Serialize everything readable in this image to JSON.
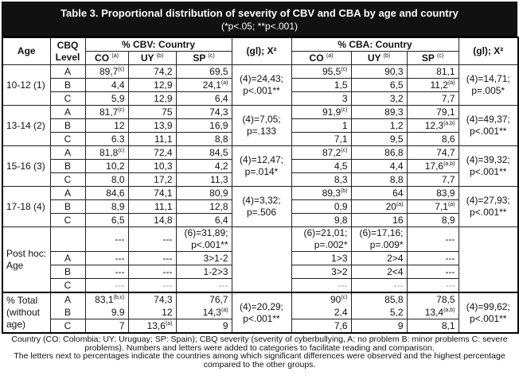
{
  "title": "Table 3. Proportional distribution of severity of CBV and CBA by age and country",
  "subtitle": "(*p<.05; **p<.001)",
  "headers": {
    "age": "Age",
    "level": "CBQ Level",
    "cbv_group": "% CBV: Country",
    "cba_group": "% CBA: Country",
    "chi": "(gl); X²",
    "countries": [
      {
        "v": "CO",
        "s": "(a)"
      },
      {
        "v": "UY",
        "s": "(b)"
      },
      {
        "v": "SP",
        "s": "(c)"
      }
    ]
  },
  "groups": [
    {
      "label": "10-12 (1)",
      "cbv_chi": "(4)=24,43; p<.001**",
      "cba_chi": "(4)=14,71; p=.005*",
      "rows": [
        {
          "level": "A",
          "cbv": [
            {
              "v": "89,7",
              "s": "(c)"
            },
            {
              "v": "74,2"
            },
            {
              "v": "69,5"
            }
          ],
          "cba": [
            {
              "v": "95,5",
              "s": "(c)"
            },
            {
              "v": "90,3"
            },
            {
              "v": "81,1"
            }
          ]
        },
        {
          "level": "B",
          "cbv": [
            {
              "v": "4,4"
            },
            {
              "v": "12,9"
            },
            {
              "v": "24,1",
              "s": "(a)"
            }
          ],
          "cba": [
            {
              "v": "1,5"
            },
            {
              "v": "6,5"
            },
            {
              "v": "11,2",
              "s": "(a)"
            }
          ]
        },
        {
          "level": "C",
          "cbv": [
            {
              "v": "5,9"
            },
            {
              "v": "12,9"
            },
            {
              "v": "6,4"
            }
          ],
          "cba": [
            {
              "v": "3"
            },
            {
              "v": "3,2"
            },
            {
              "v": "7,7"
            }
          ]
        }
      ]
    },
    {
      "label": "13-14 (2)",
      "cbv_chi": "(4)=7,05; p=.133",
      "cba_chi": "(4)=49,37; p<.001**",
      "rows": [
        {
          "level": "A",
          "cbv": [
            {
              "v": "81,7",
              "s": "(c)"
            },
            {
              "v": "75"
            },
            {
              "v": "74,3"
            }
          ],
          "cba": [
            {
              "v": "91,9",
              "s": "(c)"
            },
            {
              "v": "89,3"
            },
            {
              "v": "79,1"
            }
          ]
        },
        {
          "level": "B",
          "cbv": [
            {
              "v": "12"
            },
            {
              "v": "13,9"
            },
            {
              "v": "16,9"
            }
          ],
          "cba": [
            {
              "v": "1"
            },
            {
              "v": "1,2"
            },
            {
              "v": "12,3",
              "s": "(a,b)"
            }
          ]
        },
        {
          "level": "C",
          "cbv": [
            {
              "v": "6.3"
            },
            {
              "v": "11,1"
            },
            {
              "v": "8,8"
            }
          ],
          "cba": [
            {
              "v": "7,1"
            },
            {
              "v": "9,5"
            },
            {
              "v": "8,6"
            }
          ]
        }
      ]
    },
    {
      "label": "15-16 (3)",
      "cbv_chi": "(4)=12,47; p=.014*",
      "cba_chi": "(4)=39,32; p<.001**",
      "rows": [
        {
          "level": "A",
          "cbv": [
            {
              "v": "81,8",
              "s": "(c)"
            },
            {
              "v": "72,4"
            },
            {
              "v": "84,5"
            }
          ],
          "cba": [
            {
              "v": "87,2",
              "s": "(c)"
            },
            {
              "v": "86,8"
            },
            {
              "v": "74,7"
            }
          ]
        },
        {
          "level": "B",
          "cbv": [
            {
              "v": "10,2"
            },
            {
              "v": "10,3"
            },
            {
              "v": "4,2"
            }
          ],
          "cba": [
            {
              "v": "4,5"
            },
            {
              "v": "4,4"
            },
            {
              "v": "17,6",
              "s": "(a,b)"
            }
          ]
        },
        {
          "level": "C",
          "cbv": [
            {
              "v": "8,0"
            },
            {
              "v": "17,2"
            },
            {
              "v": "11,3"
            }
          ],
          "cba": [
            {
              "v": "8,3"
            },
            {
              "v": "8,8"
            },
            {
              "v": "7,7"
            }
          ]
        }
      ]
    },
    {
      "label": "17-18 (4)",
      "cbv_chi": "(4)=3,32; p=.506",
      "cba_chi": "(4)=27,93; p<.001**",
      "rows": [
        {
          "level": "A",
          "cbv": [
            {
              "v": "84,6"
            },
            {
              "v": "74,1"
            },
            {
              "v": "80,9"
            }
          ],
          "cba": [
            {
              "v": "89,3",
              "s": "(b)"
            },
            {
              "v": "64"
            },
            {
              "v": "83,9"
            }
          ]
        },
        {
          "level": "B",
          "cbv": [
            {
              "v": "8,9"
            },
            {
              "v": "11,1"
            },
            {
              "v": "12,8"
            }
          ],
          "cba": [
            {
              "v": "0,9"
            },
            {
              "v": "20",
              "s": "(a)"
            },
            {
              "v": "7,1",
              "s": "(a)"
            }
          ]
        },
        {
          "level": "C",
          "cbv": [
            {
              "v": "6,5"
            },
            {
              "v": "14,8"
            },
            {
              "v": "6,4"
            }
          ],
          "cba": [
            {
              "v": "9,8"
            },
            {
              "v": "16"
            },
            {
              "v": "8,9"
            }
          ]
        }
      ]
    },
    {
      "label": "Post hoc: Age",
      "cbv_chi": "",
      "cba_chi": "",
      "posthoc": true,
      "rows": [
        {
          "level": "",
          "cbv": [
            {
              "v": "---"
            },
            {
              "v": "---"
            },
            {
              "v": "(6)=31,89; p<.001**"
            }
          ],
          "cba": [
            {
              "v": "(6)=21,01; p=.002*"
            },
            {
              "v": "(6)=17,16; p=.009*"
            },
            {
              "v": "---"
            }
          ]
        },
        {
          "level": "A",
          "cbv": [
            {
              "v": "---"
            },
            {
              "v": "---"
            },
            {
              "v": "3>1-2"
            }
          ],
          "cba": [
            {
              "v": "1>3"
            },
            {
              "v": "2>4"
            },
            {
              "v": "---"
            }
          ]
        },
        {
          "level": "B",
          "cbv": [
            {
              "v": "---"
            },
            {
              "v": "---"
            },
            {
              "v": "1-2>3"
            }
          ],
          "cba": [
            {
              "v": "3>2"
            },
            {
              "v": "2<4"
            },
            {
              "v": "---"
            }
          ]
        },
        {
          "level": "C",
          "cbv": [
            {
              "v": "---"
            },
            {
              "v": "---"
            },
            {
              "v": "---"
            }
          ],
          "cba": [
            {
              "v": "---"
            },
            {
              "v": "---"
            },
            {
              "v": "---"
            }
          ],
          "faded": true
        }
      ]
    },
    {
      "label": "% Total (without age)",
      "cbv_chi": "(4)=20,29; p<.001**",
      "cba_chi": "(4)=99,62; p<.001**",
      "total": true,
      "rows": [
        {
          "level": "A",
          "cbv": [
            {
              "v": "83,1",
              "s": "(b;c)"
            },
            {
              "v": "74,3"
            },
            {
              "v": "76,7"
            }
          ],
          "cba": [
            {
              "v": "90",
              "s": "(c)"
            },
            {
              "v": "85,8"
            },
            {
              "v": "78,5"
            }
          ]
        },
        {
          "level": "B",
          "cbv": [
            {
              "v": "9,9"
            },
            {
              "v": "12"
            },
            {
              "v": "14,3",
              "s": "(a)"
            }
          ],
          "cba": [
            {
              "v": "2,4"
            },
            {
              "v": "5,2"
            },
            {
              "v": "13,4",
              "s": "(a,b)"
            }
          ]
        },
        {
          "level": "C",
          "cbv": [
            {
              "v": "7"
            },
            {
              "v": "13,6",
              "s": "(a)"
            },
            {
              "v": "9"
            }
          ],
          "cba": [
            {
              "v": "7,6"
            },
            {
              "v": "9"
            },
            {
              "v": "8,1"
            }
          ]
        }
      ]
    }
  ],
  "footnotes": [
    "Country (CO: Colombia; UY: Uruguay; SP: Spain); CBQ severity (severity of cyberbullying, A: no problem B: minor problems C: severe problems). Numbers and letters were added to categories to facilitate reading and comparison.",
    "The letters next to percentages indicate the countries among which significant differences were observed and the highest percentage compared to the other groups."
  ]
}
